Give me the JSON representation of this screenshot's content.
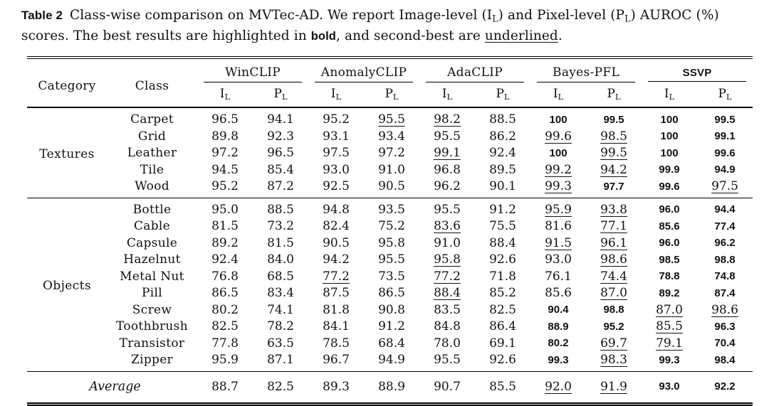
{
  "caption": {
    "label": "Table 2",
    "part1": "Class-wise comparison on MVTec-AD. We report Image-level (I",
    "sub1": "L",
    "part2": ") and Pixel-level (P",
    "sub2": "L",
    "part3": ") AUROC (%) scores. The best results are highlighted in ",
    "bold_word": "bold",
    "part4": ", and second-best are ",
    "underlined_word": "underlined",
    "part5": "."
  },
  "header": {
    "category": "Category",
    "class": "Class",
    "groups": [
      {
        "name": "WinCLIP",
        "bold": false
      },
      {
        "name": "AnomalyCLIP",
        "bold": false
      },
      {
        "name": "AdaCLIP",
        "bold": false
      },
      {
        "name": "Bayes-PFL",
        "bold": false
      },
      {
        "name": "SSVP",
        "bold": true
      }
    ],
    "metric_image": "I",
    "metric_pixel": "P",
    "metric_sub": "L"
  },
  "legend": {
    "best": "bold",
    "second_best": "underlined"
  },
  "chart_data": {
    "type": "table",
    "title": "Class-wise comparison on MVTec-AD (AUROC %)",
    "column_groups": [
      "WinCLIP",
      "AnomalyCLIP",
      "AdaCLIP",
      "Bayes-PFL",
      "SSVP"
    ],
    "per_group_metrics": [
      "IL",
      "PL"
    ]
  },
  "table": {
    "sections": [
      {
        "category": "Textures",
        "rows": [
          {
            "class": "Carpet",
            "values": [
              "96.5",
              "94.1",
              "95.2",
              "95.5",
              "98.2",
              "88.5",
              "100",
              "99.5",
              "100",
              "99.5"
            ],
            "styles": [
              "",
              "",
              "",
              "u",
              "u",
              "",
              "b",
              "b",
              "b",
              "b"
            ]
          },
          {
            "class": "Grid",
            "values": [
              "89.8",
              "92.3",
              "93.1",
              "93.4",
              "95.5",
              "86.2",
              "99.6",
              "98.5",
              "100",
              "99.1"
            ],
            "styles": [
              "",
              "",
              "",
              "",
              "",
              "",
              "u",
              "u",
              "b",
              "b"
            ]
          },
          {
            "class": "Leather",
            "values": [
              "97.2",
              "96.5",
              "97.5",
              "97.2",
              "99.1",
              "92.4",
              "100",
              "99.5",
              "100",
              "99.6"
            ],
            "styles": [
              "",
              "",
              "",
              "",
              "u",
              "",
              "b",
              "u",
              "b",
              "b"
            ]
          },
          {
            "class": "Tile",
            "values": [
              "94.5",
              "85.4",
              "93.0",
              "91.0",
              "96.8",
              "89.5",
              "99.2",
              "94.2",
              "99.9",
              "94.9"
            ],
            "styles": [
              "",
              "",
              "",
              "",
              "",
              "",
              "u",
              "u",
              "b",
              "b"
            ]
          },
          {
            "class": "Wood",
            "values": [
              "95.2",
              "87.2",
              "92.5",
              "90.5",
              "96.2",
              "90.1",
              "99.3",
              "97.7",
              "99.6",
              "97.5"
            ],
            "styles": [
              "",
              "",
              "",
              "",
              "",
              "",
              "u",
              "b",
              "b",
              "u"
            ]
          }
        ]
      },
      {
        "category": "Objects",
        "rows": [
          {
            "class": "Bottle",
            "values": [
              "95.0",
              "88.5",
              "94.8",
              "93.5",
              "95.5",
              "91.2",
              "95.9",
              "93.8",
              "96.0",
              "94.4"
            ],
            "styles": [
              "",
              "",
              "",
              "",
              "",
              "",
              "u",
              "u",
              "b",
              "b"
            ]
          },
          {
            "class": "Cable",
            "values": [
              "81.5",
              "73.2",
              "82.4",
              "75.2",
              "83.6",
              "75.5",
              "81.6",
              "77.1",
              "85.6",
              "77.4"
            ],
            "styles": [
              "",
              "",
              "",
              "",
              "u",
              "",
              "",
              "u",
              "b",
              "b"
            ]
          },
          {
            "class": "Capsule",
            "values": [
              "89.2",
              "81.5",
              "90.5",
              "95.8",
              "91.0",
              "88.4",
              "91.5",
              "96.1",
              "96.0",
              "96.2"
            ],
            "styles": [
              "",
              "",
              "",
              "",
              "",
              "",
              "u",
              "u",
              "b",
              "b"
            ]
          },
          {
            "class": "Hazelnut",
            "values": [
              "92.4",
              "84.0",
              "94.2",
              "95.5",
              "95.8",
              "92.6",
              "93.0",
              "98.6",
              "98.5",
              "98.8"
            ],
            "styles": [
              "",
              "",
              "",
              "",
              "u",
              "",
              "",
              "u",
              "b",
              "b"
            ]
          },
          {
            "class": "Metal Nut",
            "values": [
              "76.8",
              "68.5",
              "77.2",
              "73.5",
              "77.2",
              "71.8",
              "76.1",
              "74.4",
              "78.8",
              "74.8"
            ],
            "styles": [
              "",
              "",
              "u",
              "",
              "u",
              "",
              "",
              "u",
              "b",
              "b"
            ]
          },
          {
            "class": "Pill",
            "values": [
              "86.5",
              "83.4",
              "87.5",
              "86.5",
              "88.4",
              "85.2",
              "85.6",
              "87.0",
              "89.2",
              "87.4"
            ],
            "styles": [
              "",
              "",
              "",
              "",
              "u",
              "",
              "",
              "u",
              "b",
              "b"
            ]
          },
          {
            "class": "Screw",
            "values": [
              "80.2",
              "74.1",
              "81.8",
              "90.8",
              "83.5",
              "82.5",
              "90.4",
              "98.8",
              "87.0",
              "98.6"
            ],
            "styles": [
              "",
              "",
              "",
              "",
              "",
              "",
              "b",
              "b",
              "u",
              "u"
            ]
          },
          {
            "class": "Toothbrush",
            "values": [
              "82.5",
              "78.2",
              "84.1",
              "91.2",
              "84.8",
              "86.4",
              "88.9",
              "95.2",
              "85.5",
              "96.3"
            ],
            "styles": [
              "",
              "",
              "",
              "",
              "",
              "",
              "b",
              "b",
              "u",
              "b"
            ]
          },
          {
            "class": "Transistor",
            "values": [
              "77.8",
              "63.5",
              "78.5",
              "68.4",
              "78.0",
              "69.1",
              "80.2",
              "69.7",
              "79.1",
              "70.4"
            ],
            "styles": [
              "",
              "",
              "",
              "",
              "",
              "",
              "b",
              "u",
              "u",
              "b"
            ]
          },
          {
            "class": "Zipper",
            "values": [
              "95.9",
              "87.1",
              "96.7",
              "94.9",
              "95.5",
              "92.6",
              "99.3",
              "98.3",
              "99.3",
              "98.4"
            ],
            "styles": [
              "",
              "",
              "",
              "",
              "",
              "",
              "b",
              "u",
              "b",
              "b"
            ]
          }
        ]
      }
    ],
    "footer": {
      "label": "Average",
      "values": [
        "88.7",
        "82.5",
        "89.3",
        "88.9",
        "90.7",
        "85.5",
        "92.0",
        "91.9",
        "93.0",
        "92.2"
      ],
      "styles": [
        "",
        "",
        "",
        "",
        "",
        "",
        "u",
        "u",
        "b",
        "b"
      ]
    }
  }
}
